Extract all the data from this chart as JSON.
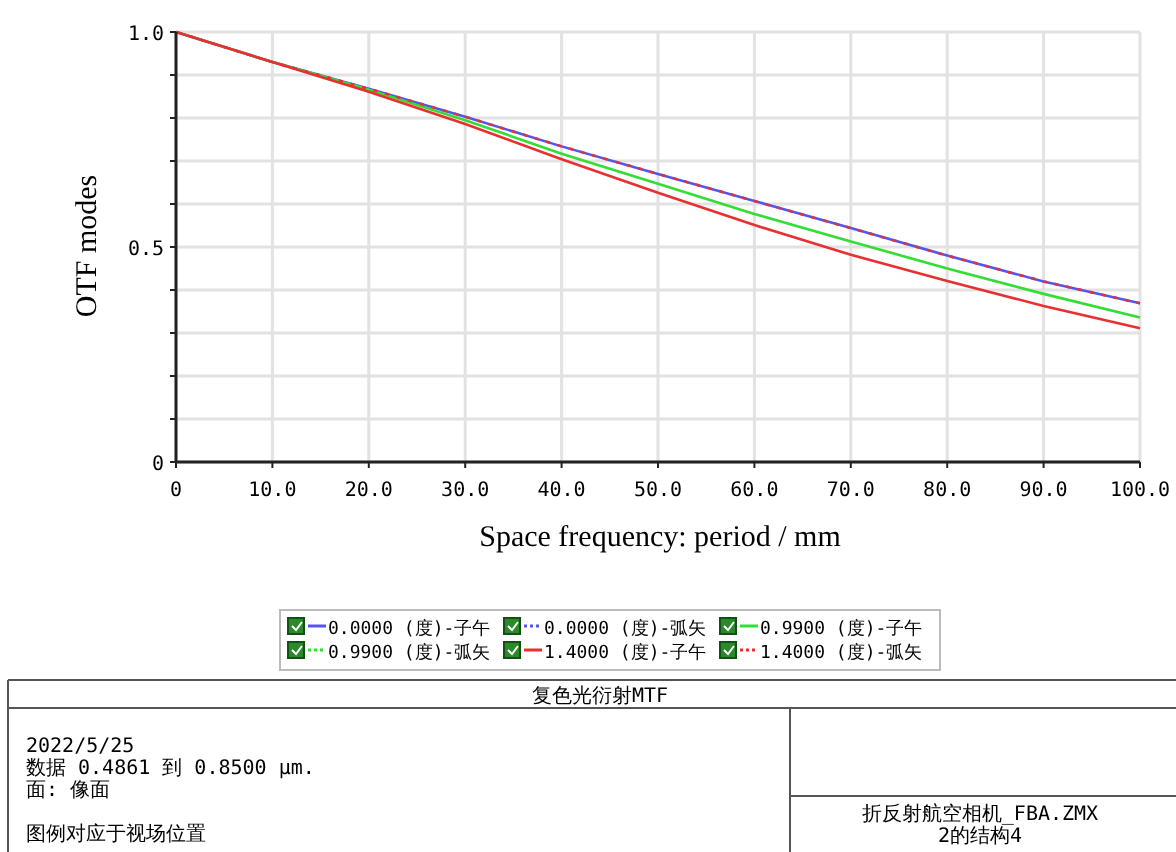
{
  "chart_data": {
    "type": "line",
    "title": "复色光衍射MTF",
    "xlabel": "Space frequency: period / mm",
    "ylabel": "OTF modes",
    "x": [
      0,
      10,
      20,
      30,
      40,
      50,
      60,
      70,
      80,
      90,
      100
    ],
    "series": [
      {
        "name": "0.0000 (度)-子午",
        "color": "#5555ee",
        "line_style": "solid",
        "values": [
          1.0,
          0.93,
          0.868,
          0.803,
          0.734,
          0.67,
          0.607,
          0.544,
          0.48,
          0.42,
          0.369
        ]
      },
      {
        "name": "0.0000 (度)-弧矢",
        "color": "#5555ee",
        "line_style": "dotted",
        "values": [
          null,
          null,
          null,
          null,
          null,
          null,
          null,
          null,
          null,
          null,
          null
        ]
      },
      {
        "name": "0.9900 (度)-子午",
        "color": "#33dd33",
        "line_style": "solid",
        "values": [
          1.0,
          0.93,
          0.866,
          0.795,
          0.717,
          0.647,
          0.577,
          0.513,
          0.45,
          0.391,
          0.336
        ]
      },
      {
        "name": "0.9900 (度)-弧矢",
        "color": "#33dd33",
        "line_style": "dotted",
        "values": [
          null,
          null,
          null,
          null,
          null,
          null,
          null,
          null,
          null,
          null,
          null
        ]
      },
      {
        "name": "1.4000 (度)-子午",
        "color": "#e83030",
        "line_style": "solid",
        "values": [
          1.0,
          0.93,
          0.861,
          0.786,
          0.704,
          0.626,
          0.551,
          0.482,
          0.421,
          0.363,
          0.311
        ]
      },
      {
        "name": "1.4000 (度)-弧矢",
        "color": "#e83030",
        "line_style": "dotted",
        "values": [
          1.0,
          0.93,
          0.868,
          0.803,
          0.734,
          0.67,
          0.607,
          0.544,
          0.48,
          0.42,
          0.369
        ]
      }
    ],
    "xlim": [
      0,
      100
    ],
    "xticks": [
      0,
      {
        "value": 10,
        "label": "10.0"
      },
      {
        "value": 20,
        "label": "20.0"
      },
      {
        "value": 30,
        "label": "30.0"
      },
      {
        "value": 40,
        "label": "40.0"
      },
      {
        "value": 50,
        "label": "50.0"
      },
      {
        "value": 60,
        "label": "60.0"
      },
      {
        "value": 70,
        "label": "70.0"
      },
      {
        "value": 80,
        "label": "80.0"
      },
      {
        "value": 90,
        "label": "90.0"
      },
      {
        "value": 100,
        "label": "100.0"
      }
    ],
    "ylim": [
      0,
      1
    ],
    "yticks": [
      0,
      {
        "value": 0.1,
        "label": null
      },
      {
        "value": 0.2,
        "label": null
      },
      {
        "value": 0.3,
        "label": null
      },
      {
        "value": 0.4,
        "label": null
      },
      0.5,
      {
        "value": 0.6,
        "label": null
      },
      {
        "value": 0.7,
        "label": null
      },
      {
        "value": 0.8,
        "label": null
      },
      {
        "value": 0.9,
        "label": null
      },
      {
        "value": 1,
        "label": "1.0"
      }
    ],
    "grid": true,
    "legend": "bottom",
    "marker": "none",
    "annotations": [
      "2022/5/25",
      "数据 0.4861 到 0.8500 µm.",
      "面: 像面",
      "图例对应于视场位置",
      "折反射航空相机_FBA.ZMX",
      "2的结构4"
    ]
  }
}
